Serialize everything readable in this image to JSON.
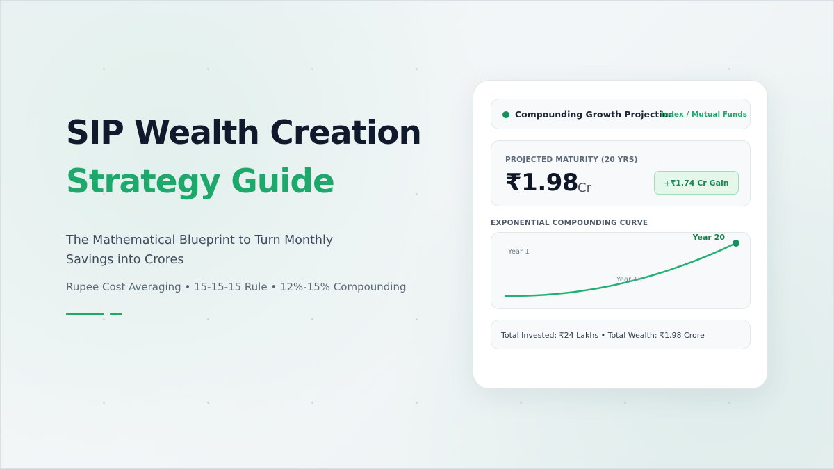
{
  "hero": {
    "title_line1": "SIP Wealth Creation",
    "title_line2": "Strategy Guide",
    "subtitle": "The Mathematical Blueprint to Turn Monthly Savings into Crores",
    "tags": "Rupee Cost Averaging • 15-15-15 Rule • 12%-15% Compounding"
  },
  "card": {
    "header_title": "Compounding Growth Projection",
    "header_tag": "Index / Mutual Funds",
    "maturity_label": "PROJECTED MATURITY (20 YRS)",
    "maturity_value": "₹1.98",
    "maturity_unit": "Cr",
    "gain_badge": "+₹1.74 Cr Gain",
    "curve_label": "EXPONENTIAL COMPOUNDING CURVE",
    "summary": "Total Invested: ₹24 Lakhs • Total Wealth: ₹1.98 Crore"
  },
  "colors": {
    "accent": "#1fa86c",
    "title_dark": "#111a2c",
    "curve": "#22b073",
    "endpoint": "#13905c"
  },
  "chart_data": {
    "type": "line",
    "title": "EXPONENTIAL COMPOUNDING CURVE",
    "annotations": [
      "Year 1",
      "Year 10",
      "Year 20"
    ],
    "x": [
      1,
      10,
      20
    ],
    "series": [
      {
        "values": [
          0.05,
          0.62,
          1.98
        ]
      }
    ]
  }
}
